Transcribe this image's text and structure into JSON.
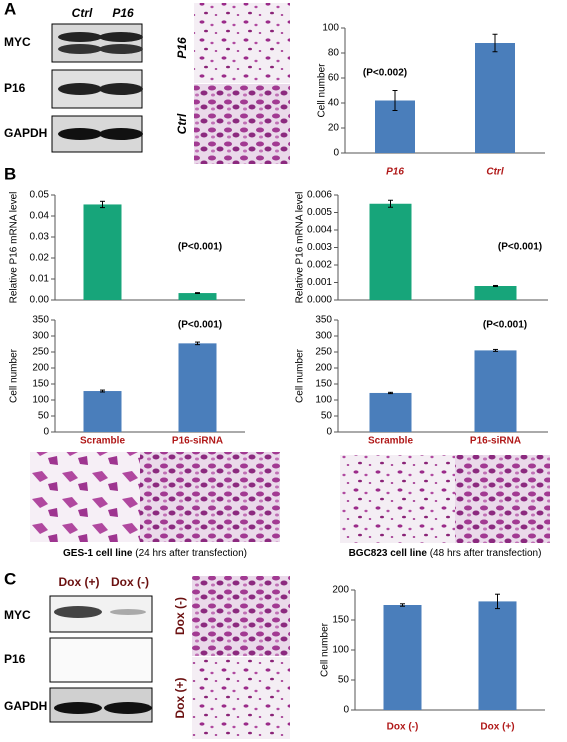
{
  "chart_data": [
    {
      "type": "bar",
      "ylabel": "Cell number",
      "categories": [
        "P16",
        "Ctrl"
      ],
      "values": [
        42,
        88
      ],
      "errors": [
        8,
        7
      ],
      "color": "#4a7ebb",
      "ylim": [
        0,
        100
      ],
      "yticks": [
        0,
        20,
        40,
        60,
        80,
        100
      ],
      "annotation": "(P<0.002)"
    },
    {
      "type": "bar",
      "ylabel": "Relative P16 mRNA level",
      "categories": [
        null,
        null
      ],
      "values": [
        0.0455,
        0.0033
      ],
      "errors": [
        0.0015,
        0.0002
      ],
      "color": "#17a57a",
      "ylim": [
        0,
        0.05
      ],
      "yticks": [
        {
          "value": 0,
          "label": "0.00"
        },
        {
          "value": 0.01,
          "label": "0.01"
        },
        {
          "value": 0.02,
          "label": "0.02"
        },
        {
          "value": 0.03,
          "label": "0.03"
        },
        {
          "value": 0.04,
          "label": "0.04"
        },
        {
          "value": 0.05,
          "label": "0.05"
        }
      ],
      "annotation": "(P<0.001)"
    },
    {
      "type": "bar",
      "ylabel": "Cell number",
      "categories": [
        "Scramble",
        "P16-siRNA"
      ],
      "values": [
        128,
        277
      ],
      "errors": [
        3,
        4
      ],
      "color": "#4a7ebb",
      "ylim": [
        0,
        350
      ],
      "yticks": [
        0,
        50,
        100,
        150,
        200,
        250,
        300,
        350
      ],
      "annotation": "(P<0.001)"
    },
    {
      "type": "bar",
      "ylabel": "Relative P16 mRNA level",
      "categories": [
        null,
        null
      ],
      "values": [
        0.0055,
        0.0008
      ],
      "errors": [
        0.0002,
        3e-05
      ],
      "color": "#17a57a",
      "ylim": [
        0,
        0.006
      ],
      "yticks": [
        {
          "value": 0,
          "label": "0.000"
        },
        {
          "value": 0.001,
          "label": "0.001"
        },
        {
          "value": 0.002,
          "label": "0.002"
        },
        {
          "value": 0.003,
          "label": "0.003"
        },
        {
          "value": 0.004,
          "label": "0.004"
        },
        {
          "value": 0.005,
          "label": "0.005"
        },
        {
          "value": 0.006,
          "label": "0.006"
        }
      ],
      "annotation": "(P<0.001)"
    },
    {
      "type": "bar",
      "ylabel": "Cell number",
      "categories": [
        "Scramble",
        "P16-siRNA"
      ],
      "values": [
        122,
        255
      ],
      "errors": [
        2,
        3
      ],
      "color": "#4a7ebb",
      "ylim": [
        0,
        350
      ],
      "yticks": [
        0,
        50,
        100,
        150,
        200,
        250,
        300,
        350
      ],
      "annotation": "(P<0.001)"
    },
    {
      "type": "bar",
      "ylabel": "Cell number",
      "categories": [
        "Dox (-)",
        "Dox (+)"
      ],
      "values": [
        175,
        181
      ],
      "errors": [
        2,
        12
      ],
      "color": "#4a7ebb",
      "ylim": [
        0,
        200
      ],
      "yticks": [
        0,
        50,
        100,
        150,
        200
      ]
    }
  ],
  "panels": {
    "A": {
      "letter": "A",
      "blot_lanes": [
        "Ctrl",
        "P16"
      ],
      "blot_rows": [
        "MYC",
        "P16",
        "GAPDH"
      ],
      "image_labels": [
        "P16",
        "Ctrl"
      ]
    },
    "B": {
      "letter": "B",
      "captions": [
        {
          "name": "GES-1 cell line",
          "note": "(24 hrs after transfection)"
        },
        {
          "name": "BGC823 cell line",
          "note": "(48 hrs after transfection)"
        }
      ]
    },
    "C": {
      "letter": "C",
      "blot_lanes": [
        "Dox (+)",
        "Dox (-)"
      ],
      "blot_rows": [
        "MYC",
        "P16",
        "GAPDH"
      ],
      "image_labels": [
        "Dox (-)",
        "Dox (+)"
      ]
    }
  }
}
